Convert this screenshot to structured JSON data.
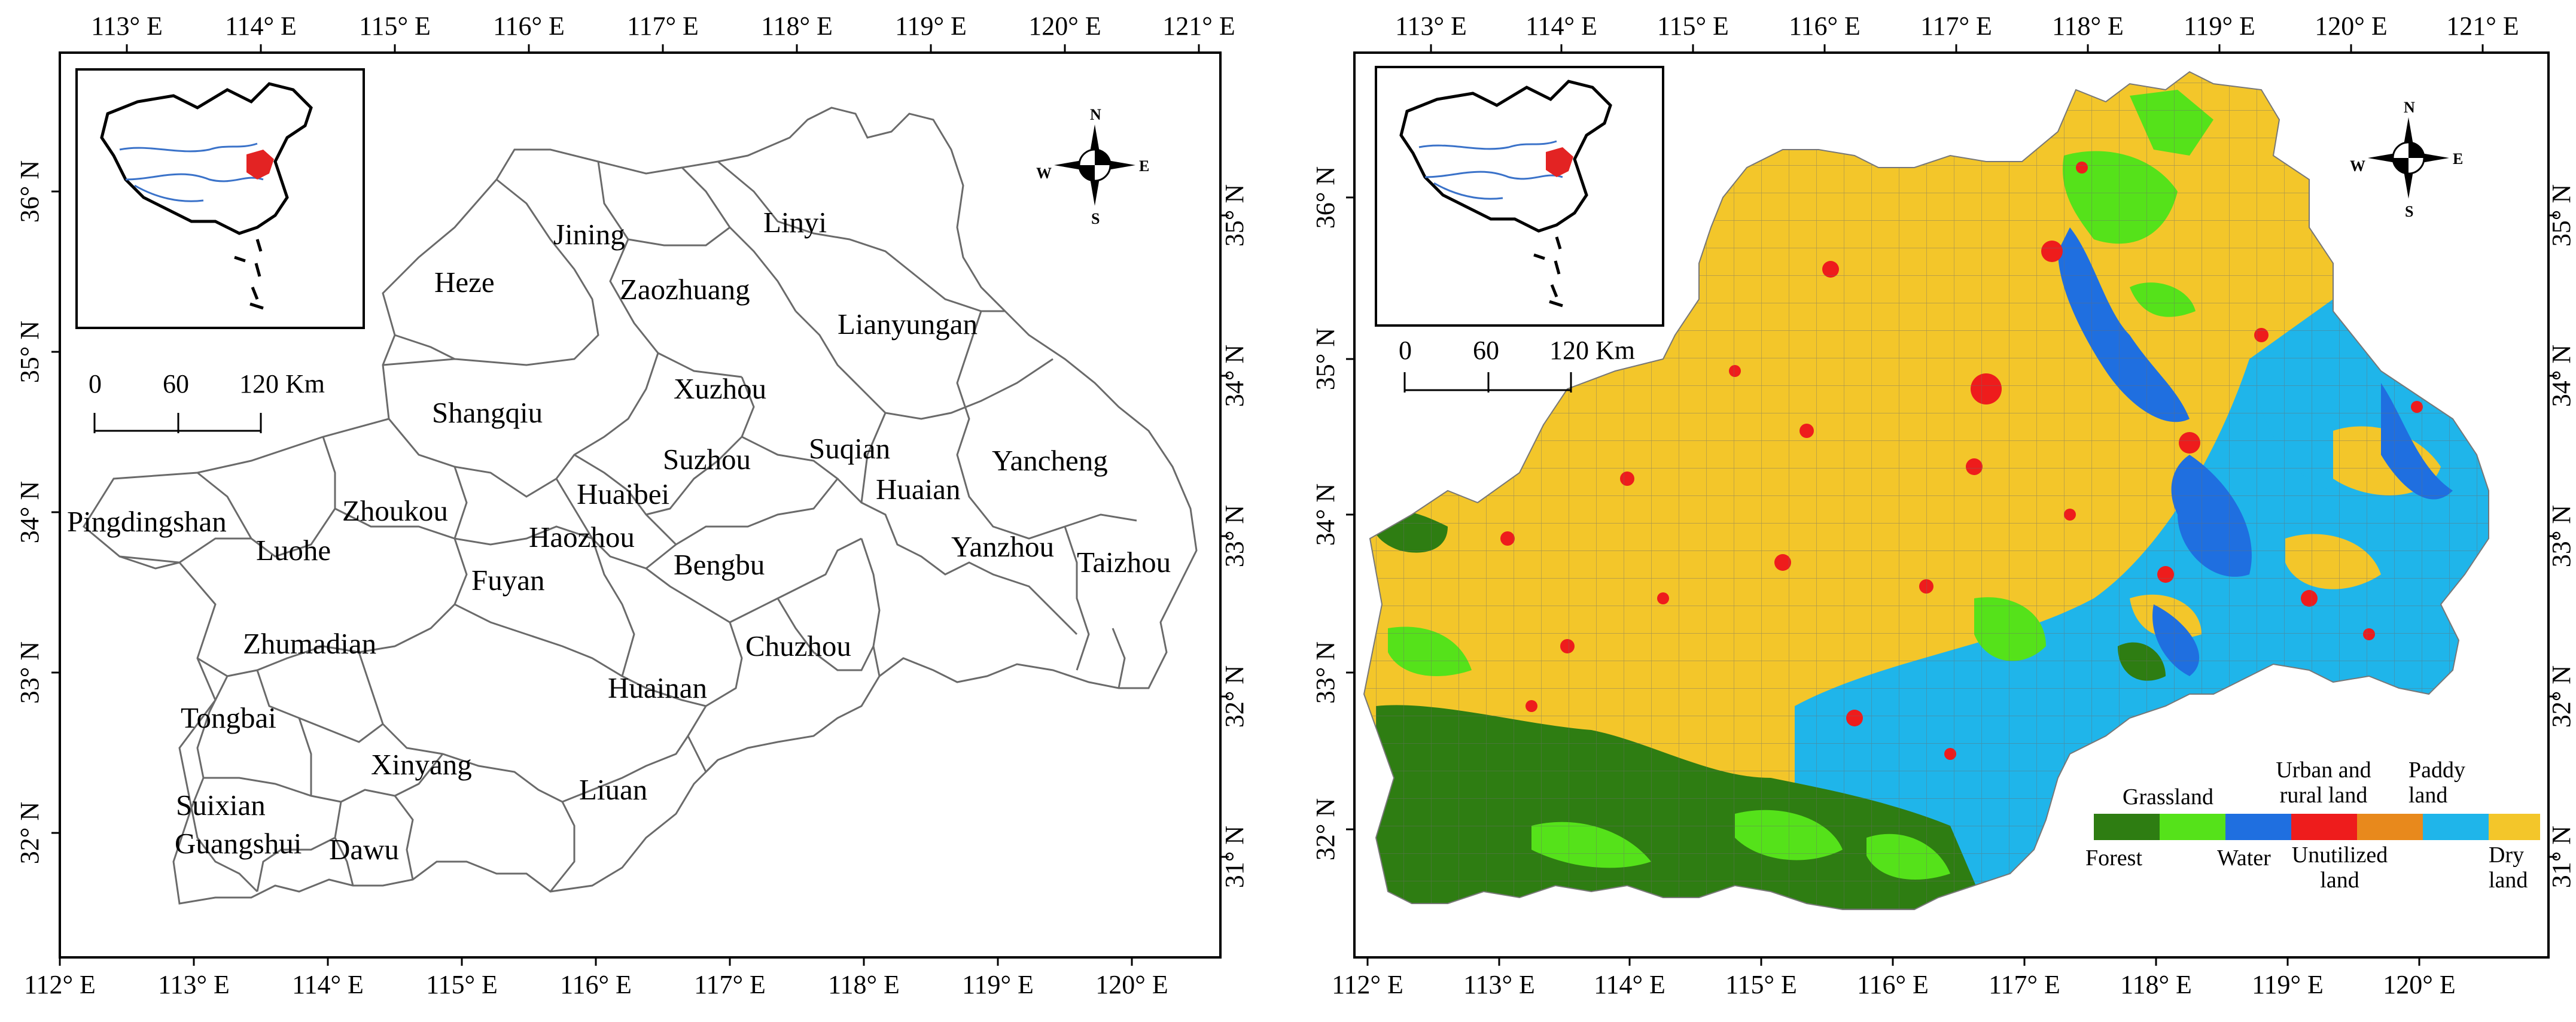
{
  "left_map": {
    "top_longitudes": [
      "113° E",
      "114° E",
      "115° E",
      "116° E",
      "117° E",
      "118° E",
      "119° E",
      "120° E",
      "121° E"
    ],
    "bottom_longitudes": [
      "112° E",
      "113° E",
      "114° E",
      "115° E",
      "116° E",
      "117° E",
      "118° E",
      "119° E",
      "120° E"
    ],
    "left_latitudes": [
      "36° N",
      "35° N",
      "34° N",
      "33° N",
      "32° N"
    ],
    "right_latitudes": [
      "35° N",
      "34° N",
      "33° N",
      "32° N",
      "31° N"
    ],
    "cities": [
      "Jining",
      "Linyi",
      "Heze",
      "Zaozhuang",
      "Lianyungan",
      "Xuzhou",
      "Shangqiu",
      "Suzhou",
      "Suqian",
      "Yancheng",
      "Huaibei",
      "Huaian",
      "Pingdingshan",
      "Zhoukou",
      "Haozhou",
      "Luohe",
      "Bengbu",
      "Yanzhou",
      "Taizhou",
      "Fuyan",
      "Zhumadian",
      "Chuzhou",
      "Huainan",
      "Tongbai",
      "Xinyang",
      "Liuan",
      "Suixian",
      "Guangshui",
      "Dawu"
    ],
    "scale": {
      "zero": "0",
      "mid": "60",
      "end": "120 Km"
    },
    "compass": {
      "n": "N",
      "s": "S",
      "e": "E",
      "w": "W"
    }
  },
  "right_map": {
    "top_longitudes": [
      "113° E",
      "114° E",
      "115° E",
      "116° E",
      "117° E",
      "118° E",
      "119° E",
      "120° E",
      "121° E"
    ],
    "bottom_longitudes": [
      "112° E",
      "113° E",
      "114° E",
      "115° E",
      "116° E",
      "117° E",
      "118° E",
      "119° E",
      "120° E"
    ],
    "left_latitudes": [
      "36° N",
      "35° N",
      "34° N",
      "33° N",
      "32° N"
    ],
    "right_latitudes": [
      "35° N",
      "34° N",
      "33° N",
      "32° N",
      "31° N"
    ],
    "scale": {
      "zero": "0",
      "mid": "60",
      "end": "120 Km"
    },
    "compass": {
      "n": "N",
      "s": "S",
      "e": "E",
      "w": "W"
    },
    "legend": [
      {
        "label": "Forest",
        "color": "#2e7d12"
      },
      {
        "label": "Grassland",
        "color": "#55e21a"
      },
      {
        "label": "Water",
        "color": "#1f6fe0"
      },
      {
        "label": "Urban and rural land",
        "color": "#ee1c1c"
      },
      {
        "label": "Unutilized land",
        "color": "#e8891c"
      },
      {
        "label": "Paddy land",
        "color": "#1fb5ea"
      },
      {
        "label": "Dry land",
        "color": "#f3c62a"
      }
    ]
  }
}
